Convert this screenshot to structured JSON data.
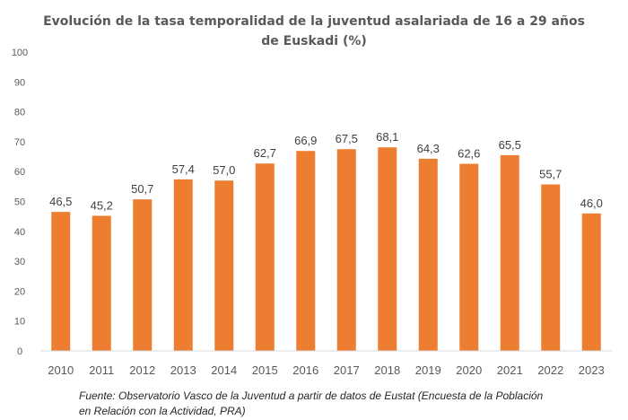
{
  "chart_data": {
    "type": "bar",
    "title_lines": [
      "Evolución de la tasa temporalidad de la juventud asalariada de 16 a 29 años",
      "de Euskadi (%)"
    ],
    "categories": [
      "2010",
      "2011",
      "2012",
      "2013",
      "2014",
      "2015",
      "2016",
      "2017",
      "2018",
      "2019",
      "2020",
      "2021",
      "2022",
      "2023"
    ],
    "values": [
      46.5,
      45.2,
      50.7,
      57.4,
      57.0,
      62.7,
      66.9,
      67.5,
      68.1,
      64.3,
      62.6,
      65.5,
      55.7,
      46.0
    ],
    "data_labels": [
      "46,5",
      "45,2",
      "50,7",
      "57,4",
      "57,0",
      "62,7",
      "66,9",
      "67,5",
      "68,1",
      "64,3",
      "62,6",
      "65,5",
      "55,7",
      "46,0"
    ],
    "yticks": [
      "0",
      "10",
      "20",
      "30",
      "40",
      "50",
      "60",
      "70",
      "80",
      "90",
      "100"
    ],
    "ylim": [
      0,
      100
    ],
    "grid": false,
    "xlabel": "",
    "ylabel": "",
    "bar_color": "#ED7D31",
    "source_lines": [
      "Fuente: Observatorio Vasco de la Juventud a partir de datos de Eustat (Encuesta de la Población",
      "en Relación con la Actividad, PRA)"
    ]
  }
}
